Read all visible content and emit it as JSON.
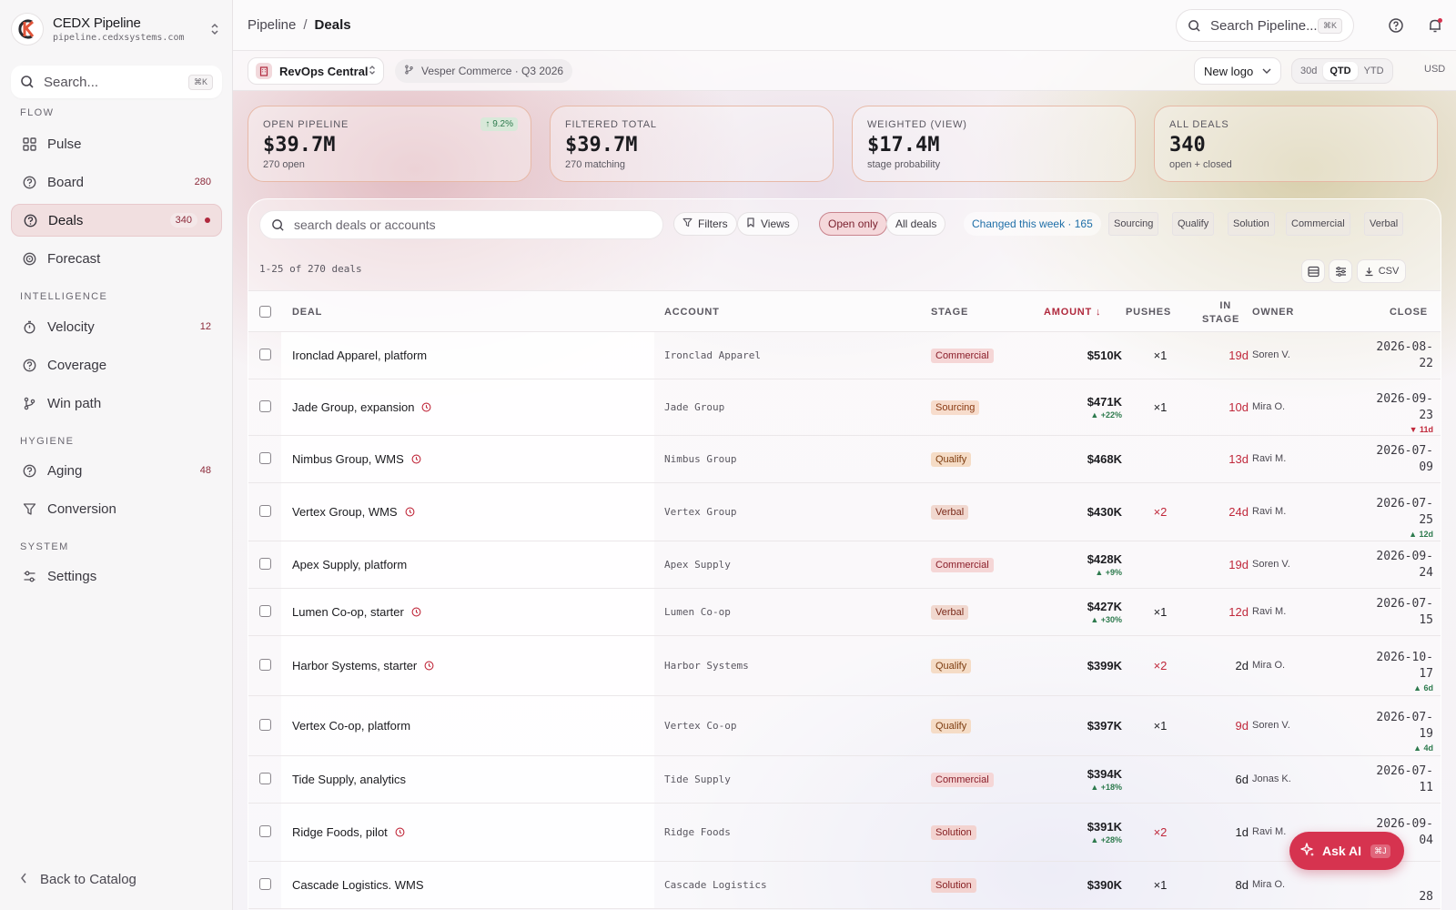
{
  "brand": {
    "name": "CEDX Pipeline",
    "domain": "pipeline.cedxsystems.com"
  },
  "sidebar": {
    "search_placeholder": "Search...",
    "search_shortcut": "⌘K",
    "sections": {
      "flow": "FLOW",
      "intelligence": "INTELLIGENCE",
      "hygiene": "HYGIENE",
      "system": "SYSTEM"
    },
    "items": [
      {
        "label": "Pulse",
        "icon": "grid-icon",
        "count": ""
      },
      {
        "label": "Board",
        "icon": "circle-question-icon",
        "count": "280"
      },
      {
        "label": "Deals",
        "icon": "circle-question-icon",
        "count": "340",
        "active": true
      },
      {
        "label": "Forecast",
        "icon": "target-icon",
        "count": ""
      },
      {
        "label": "Velocity",
        "icon": "stopwatch-icon",
        "count": "12"
      },
      {
        "label": "Coverage",
        "icon": "circle-question-icon",
        "count": ""
      },
      {
        "label": "Win path",
        "icon": "branch-icon",
        "count": ""
      },
      {
        "label": "Aging",
        "icon": "circle-question-icon",
        "count": "48"
      },
      {
        "label": "Conversion",
        "icon": "funnel-icon",
        "count": ""
      },
      {
        "label": "Settings",
        "icon": "sliders-icon",
        "count": ""
      }
    ],
    "back_label": "Back to Catalog"
  },
  "topbar": {
    "breadcrumb_root": "Pipeline",
    "breadcrumb_sep": "/",
    "breadcrumb_current": "Deals",
    "search_placeholder": "Search Pipeline...",
    "search_shortcut": "⌘K"
  },
  "toolbar": {
    "workspace": "RevOps Central",
    "scenario": "Vesper Commerce · Q3 2026",
    "segment": "New logo",
    "periods": [
      "30d",
      "QTD",
      "YTD"
    ],
    "period_selected": "QTD",
    "currency": "USD"
  },
  "kpis": [
    {
      "label": "OPEN PIPELINE",
      "value": "$39.7M",
      "sub": "270 open",
      "delta": "↑ 9.2%"
    },
    {
      "label": "FILTERED TOTAL",
      "value": "$39.7M",
      "sub": "270 matching",
      "delta": ""
    },
    {
      "label": "WEIGHTED (VIEW)",
      "value": "$17.4M",
      "sub": "stage probability",
      "delta": ""
    },
    {
      "label": "ALL DEALS",
      "value": "340",
      "sub": "open + closed",
      "delta": ""
    }
  ],
  "filters": {
    "search_placeholder": "search deals or accounts",
    "filters_label": "Filters",
    "views_label": "Views",
    "open_only": "Open only",
    "all_deals": "All deals",
    "changed": "Changed this week · 165",
    "stages": [
      "Sourcing",
      "Qualify",
      "Solution",
      "Commercial",
      "Verbal"
    ]
  },
  "table": {
    "count_line": "1-25 of 270 deals",
    "csv_label": "CSV",
    "columns": {
      "deal": "DEAL",
      "account": "ACCOUNT",
      "stage": "STAGE",
      "amount": "AMOUNT",
      "pushes": "PUSHES",
      "in_stage_1": "IN",
      "in_stage_2": "STAGE",
      "owner": "OWNER",
      "close": "CLOSE"
    },
    "rows": [
      {
        "deal": "Ironclad Apparel, platform",
        "warn": false,
        "account": "Ironclad Apparel",
        "stage": "Commercial",
        "amount": "$510K",
        "amount_delta": "",
        "pushes": "×1",
        "pushes_hi": false,
        "in_stage": "19d",
        "late": true,
        "owner": "Soren V.",
        "close_1": "2026-08-",
        "close_2": "22",
        "close_delta": "",
        "close_dir": ""
      },
      {
        "deal": "Jade Group, expansion",
        "warn": true,
        "account": "Jade Group",
        "stage": "Sourcing",
        "amount": "$471K",
        "amount_delta": "▲ +22%",
        "pushes": "×1",
        "pushes_hi": false,
        "in_stage": "10d",
        "late": true,
        "owner": "Mira O.",
        "close_1": "2026-09-",
        "close_2": "23",
        "close_delta": "▼ 11d",
        "close_dir": "down"
      },
      {
        "deal": "Nimbus Group, WMS",
        "warn": true,
        "account": "Nimbus Group",
        "stage": "Qualify",
        "amount": "$468K",
        "amount_delta": "",
        "pushes": "",
        "pushes_hi": false,
        "in_stage": "13d",
        "late": true,
        "owner": "Ravi M.",
        "close_1": "2026-07-",
        "close_2": "09",
        "close_delta": "",
        "close_dir": ""
      },
      {
        "deal": "Vertex Group, WMS",
        "warn": true,
        "account": "Vertex Group",
        "stage": "Verbal",
        "amount": "$430K",
        "amount_delta": "",
        "pushes": "×2",
        "pushes_hi": true,
        "in_stage": "24d",
        "late": true,
        "owner": "Ravi M.",
        "close_1": "2026-07-",
        "close_2": "25",
        "close_delta": "▲ 12d",
        "close_dir": "up"
      },
      {
        "deal": "Apex Supply, platform",
        "warn": false,
        "account": "Apex Supply",
        "stage": "Commercial",
        "amount": "$428K",
        "amount_delta": "▲ +9%",
        "pushes": "",
        "pushes_hi": false,
        "in_stage": "19d",
        "late": true,
        "owner": "Soren V.",
        "close_1": "2026-09-",
        "close_2": "24",
        "close_delta": "",
        "close_dir": ""
      },
      {
        "deal": "Lumen Co-op, starter",
        "warn": true,
        "account": "Lumen Co-op",
        "stage": "Verbal",
        "amount": "$427K",
        "amount_delta": "▲ +30%",
        "pushes": "×1",
        "pushes_hi": false,
        "in_stage": "12d",
        "late": true,
        "owner": "Ravi M.",
        "close_1": "2026-07-",
        "close_2": "15",
        "close_delta": "",
        "close_dir": ""
      },
      {
        "deal": "Harbor Systems, starter",
        "warn": true,
        "account": "Harbor Systems",
        "stage": "Qualify",
        "amount": "$399K",
        "amount_delta": "",
        "pushes": "×2",
        "pushes_hi": true,
        "in_stage": "2d",
        "late": false,
        "owner": "Mira O.",
        "close_1": "2026-10-",
        "close_2": "17",
        "close_delta": "▲ 6d",
        "close_dir": "up"
      },
      {
        "deal": "Vertex Co-op, platform",
        "warn": false,
        "account": "Vertex Co-op",
        "stage": "Qualify",
        "amount": "$397K",
        "amount_delta": "",
        "pushes": "×1",
        "pushes_hi": false,
        "in_stage": "9d",
        "late": true,
        "owner": "Soren V.",
        "close_1": "2026-07-",
        "close_2": "19",
        "close_delta": "▲ 4d",
        "close_dir": "up"
      },
      {
        "deal": "Tide Supply, analytics",
        "warn": false,
        "account": "Tide Supply",
        "stage": "Commercial",
        "amount": "$394K",
        "amount_delta": "▲ +18%",
        "pushes": "",
        "pushes_hi": false,
        "in_stage": "6d",
        "late": false,
        "owner": "Jonas K.",
        "close_1": "2026-07-",
        "close_2": "11",
        "close_delta": "",
        "close_dir": ""
      },
      {
        "deal": "Ridge Foods, pilot",
        "warn": true,
        "account": "Ridge Foods",
        "stage": "Solution",
        "amount": "$391K",
        "amount_delta": "▲ +28%",
        "pushes": "×2",
        "pushes_hi": true,
        "in_stage": "1d",
        "late": false,
        "owner": "Ravi M.",
        "close_1": "2026-09-",
        "close_2": "04",
        "close_delta": "",
        "close_dir": ""
      },
      {
        "deal": "Cascade Logistics. WMS",
        "warn": false,
        "account": "Cascade Logistics",
        "stage": "Solution",
        "amount": "$390K",
        "amount_delta": "",
        "pushes": "×1",
        "pushes_hi": false,
        "in_stage": "8d",
        "late": false,
        "owner": "Mira O.",
        "close_1": "28",
        "close_2": "",
        "close_delta": "",
        "close_dir": ""
      }
    ]
  },
  "ask_ai": {
    "label": "Ask AI",
    "shortcut": "⌘J"
  },
  "colors": {
    "accent": "#d6334f",
    "positive": "#2d7a4d",
    "negative": "#c0283b"
  }
}
